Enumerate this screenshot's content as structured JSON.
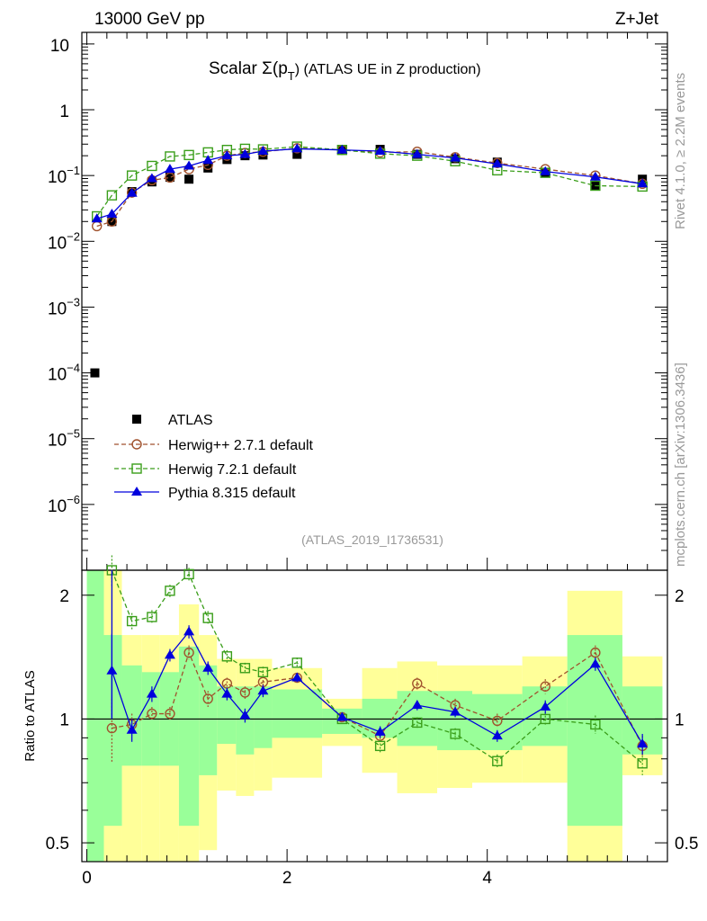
{
  "header": {
    "left": "13000 GeV pp",
    "right": "Z+Jet"
  },
  "side_labels": {
    "rivet": "Rivet 4.1.0, ≥ 2.2M events",
    "mcplots": "mcplots.cern.ch [arXiv:1306.3436]"
  },
  "colors": {
    "atlas": "#000000",
    "herwigpp": "#a0522d",
    "herwig7": "#3a9e1a",
    "pythia": "#0000dd",
    "band_inner": "#99ff99",
    "band_outer": "#ffff99"
  },
  "chart_data": [
    {
      "type": "scatter",
      "panel": "main",
      "title_prefix": "Scalar Σ(p",
      "title_sub": "T",
      "title_suffix": ") (ATLAS UE in Z production)",
      "analysis_id": "(ATLAS_2019_I1736531)",
      "yscale": "log",
      "ylim": [
        1e-07,
        15
      ],
      "xlim": [
        -0.05,
        5.8
      ],
      "y_ticks": [
        {
          "v": 10,
          "label": "10"
        },
        {
          "v": 1,
          "label": "1"
        },
        {
          "v": 0.1,
          "label": "10",
          "exp": "−1"
        },
        {
          "v": 0.01,
          "label": "10",
          "exp": "−2"
        },
        {
          "v": 0.001,
          "label": "10",
          "exp": "−3"
        },
        {
          "v": 0.0001,
          "label": "10",
          "exp": "−4"
        },
        {
          "v": 1e-05,
          "label": "10",
          "exp": "−5"
        },
        {
          "v": 1e-06,
          "label": "10",
          "exp": "−6"
        }
      ],
      "legend_position": "lower-left",
      "series": [
        {
          "name": "ATLAS",
          "marker": "square-filled",
          "x": [
            0.08,
            0.25,
            0.45,
            0.65,
            0.83,
            1.02,
            1.21,
            1.4,
            1.58,
            1.76,
            2.1,
            2.55,
            2.93,
            3.3,
            3.68,
            4.1,
            4.58,
            5.08,
            5.55
          ],
          "y": [
            0.0001,
            0.02,
            0.057,
            0.08,
            0.094,
            0.088,
            0.13,
            0.175,
            0.2,
            0.205,
            0.21,
            0.245,
            0.25,
            0.21,
            0.18,
            0.16,
            0.11,
            0.07,
            0.088
          ]
        },
        {
          "name": "Herwig++ 2.7.1 default",
          "marker": "circle-open",
          "dashed": true,
          "x": [
            0.1,
            0.25,
            0.45,
            0.65,
            0.83,
            1.02,
            1.21,
            1.4,
            1.58,
            1.76,
            2.1,
            2.55,
            2.93,
            3.3,
            3.68,
            4.1,
            4.58,
            5.08,
            5.55
          ],
          "y": [
            0.017,
            0.02,
            0.055,
            0.085,
            0.093,
            0.125,
            0.145,
            0.2,
            0.22,
            0.23,
            0.26,
            0.245,
            0.225,
            0.23,
            0.19,
            0.155,
            0.125,
            0.1,
            0.075
          ]
        },
        {
          "name": "Herwig 7.2.1 default",
          "marker": "square-open",
          "dashed": true,
          "x": [
            0.1,
            0.25,
            0.45,
            0.65,
            0.83,
            1.02,
            1.21,
            1.4,
            1.58,
            1.76,
            2.1,
            2.55,
            2.93,
            3.3,
            3.68,
            4.1,
            4.58,
            5.08,
            5.55
          ],
          "y": [
            0.024,
            0.05,
            0.1,
            0.14,
            0.195,
            0.205,
            0.225,
            0.245,
            0.255,
            0.25,
            0.275,
            0.245,
            0.215,
            0.2,
            0.165,
            0.12,
            0.11,
            0.07,
            0.068
          ]
        },
        {
          "name": "Pythia 8.315 default",
          "marker": "triangle-filled",
          "dashed": false,
          "x": [
            0.1,
            0.25,
            0.45,
            0.65,
            0.83,
            1.02,
            1.21,
            1.4,
            1.58,
            1.76,
            2.1,
            2.55,
            2.93,
            3.3,
            3.68,
            4.1,
            4.58,
            5.08,
            5.55
          ],
          "y": [
            0.022,
            0.026,
            0.054,
            0.09,
            0.125,
            0.14,
            0.17,
            0.2,
            0.21,
            0.235,
            0.255,
            0.245,
            0.235,
            0.21,
            0.185,
            0.15,
            0.115,
            0.095,
            0.075
          ]
        }
      ]
    },
    {
      "type": "scatter",
      "panel": "ratio",
      "ylabel": "Ratio to ATLAS",
      "xlabel": "",
      "yscale": "log",
      "ylim": [
        0.45,
        2.3
      ],
      "xlim": [
        -0.05,
        5.8
      ],
      "x_ticks": [
        0,
        2,
        4
      ],
      "x_tick_labels": [
        "0",
        "2",
        "4"
      ],
      "y_ticks": [
        0.5,
        1,
        2
      ],
      "y_tick_labels": [
        "0.5",
        "1",
        "2"
      ],
      "bands": {
        "edges": [
          0.0,
          0.17,
          0.35,
          0.55,
          0.73,
          0.92,
          1.12,
          1.3,
          1.49,
          1.67,
          1.85,
          2.35,
          2.75,
          3.1,
          3.5,
          3.85,
          4.35,
          4.8,
          5.35,
          5.75
        ],
        "inner_lo": [
          0.45,
          0.55,
          0.77,
          0.77,
          0.77,
          0.55,
          0.73,
          0.87,
          0.82,
          0.85,
          0.9,
          0.92,
          0.9,
          0.86,
          0.84,
          0.84,
          0.86,
          0.55,
          0.82
        ],
        "inner_hi": [
          2.3,
          1.6,
          1.35,
          1.3,
          1.3,
          1.5,
          1.35,
          1.2,
          1.2,
          1.2,
          1.18,
          1.06,
          1.12,
          1.17,
          1.17,
          1.15,
          1.2,
          1.6,
          1.2
        ],
        "outer_lo": [
          0.45,
          0.45,
          0.45,
          0.44,
          0.44,
          0.45,
          0.48,
          0.67,
          0.65,
          0.67,
          0.72,
          0.86,
          0.74,
          0.66,
          0.68,
          0.7,
          0.7,
          0.45,
          0.73
        ],
        "outer_hi": [
          2.3,
          2.3,
          1.6,
          1.6,
          1.6,
          1.9,
          1.6,
          1.4,
          1.4,
          1.4,
          1.33,
          1.12,
          1.33,
          1.38,
          1.35,
          1.35,
          1.42,
          2.05,
          1.42
        ]
      },
      "series": [
        {
          "name": "Herwig++ 2.7.1 default",
          "x": [
            0.25,
            0.45,
            0.65,
            0.83,
            1.02,
            1.21,
            1.4,
            1.58,
            1.76,
            2.1,
            2.55,
            2.93,
            3.3,
            3.68,
            4.1,
            4.58,
            5.08,
            5.55
          ],
          "y": [
            0.95,
            0.97,
            1.03,
            1.03,
            1.45,
            1.12,
            1.22,
            1.16,
            1.23,
            1.26,
            1.01,
            0.91,
            1.22,
            1.08,
            0.99,
            1.2,
            1.45,
            0.86
          ],
          "err": [
            0.17,
            0.06,
            0.04,
            0.04,
            0.06,
            0.05,
            0.04,
            0.04,
            0.04,
            0.03,
            0.02,
            0.03,
            0.04,
            0.04,
            0.04,
            0.05,
            0.06,
            0.05
          ]
        },
        {
          "name": "Herwig 7.2.1 default",
          "x": [
            0.25,
            0.45,
            0.65,
            0.83,
            1.02,
            1.21,
            1.4,
            1.58,
            1.76,
            2.1,
            2.55,
            2.93,
            3.3,
            3.68,
            4.1,
            4.58,
            5.08,
            5.55
          ],
          "y": [
            2.3,
            1.73,
            1.77,
            2.05,
            2.25,
            1.76,
            1.42,
            1.33,
            1.3,
            1.37,
            1.0,
            0.86,
            0.98,
            0.92,
            0.79,
            1.0,
            0.97,
            0.78
          ],
          "err": [
            0.2,
            0.08,
            0.07,
            0.07,
            0.08,
            0.07,
            0.05,
            0.04,
            0.04,
            0.04,
            0.02,
            0.03,
            0.03,
            0.03,
            0.03,
            0.04,
            0.05,
            0.05
          ]
        },
        {
          "name": "Pythia 8.315 default",
          "x": [
            0.25,
            0.45,
            0.65,
            0.83,
            1.02,
            1.21,
            1.4,
            1.58,
            1.76,
            2.1,
            2.55,
            2.93,
            3.3,
            3.68,
            4.1,
            4.58,
            5.08,
            5.55
          ],
          "y": [
            1.31,
            0.94,
            1.15,
            1.43,
            1.63,
            1.33,
            1.15,
            1.02,
            1.17,
            1.26,
            1.01,
            0.93,
            1.08,
            1.04,
            0.91,
            1.07,
            1.36,
            0.87
          ],
          "err": [
            0.3,
            0.06,
            0.05,
            0.05,
            0.06,
            0.05,
            0.04,
            0.04,
            0.04,
            0.03,
            0.02,
            0.03,
            0.03,
            0.03,
            0.03,
            0.04,
            0.05,
            0.05
          ]
        }
      ]
    }
  ]
}
